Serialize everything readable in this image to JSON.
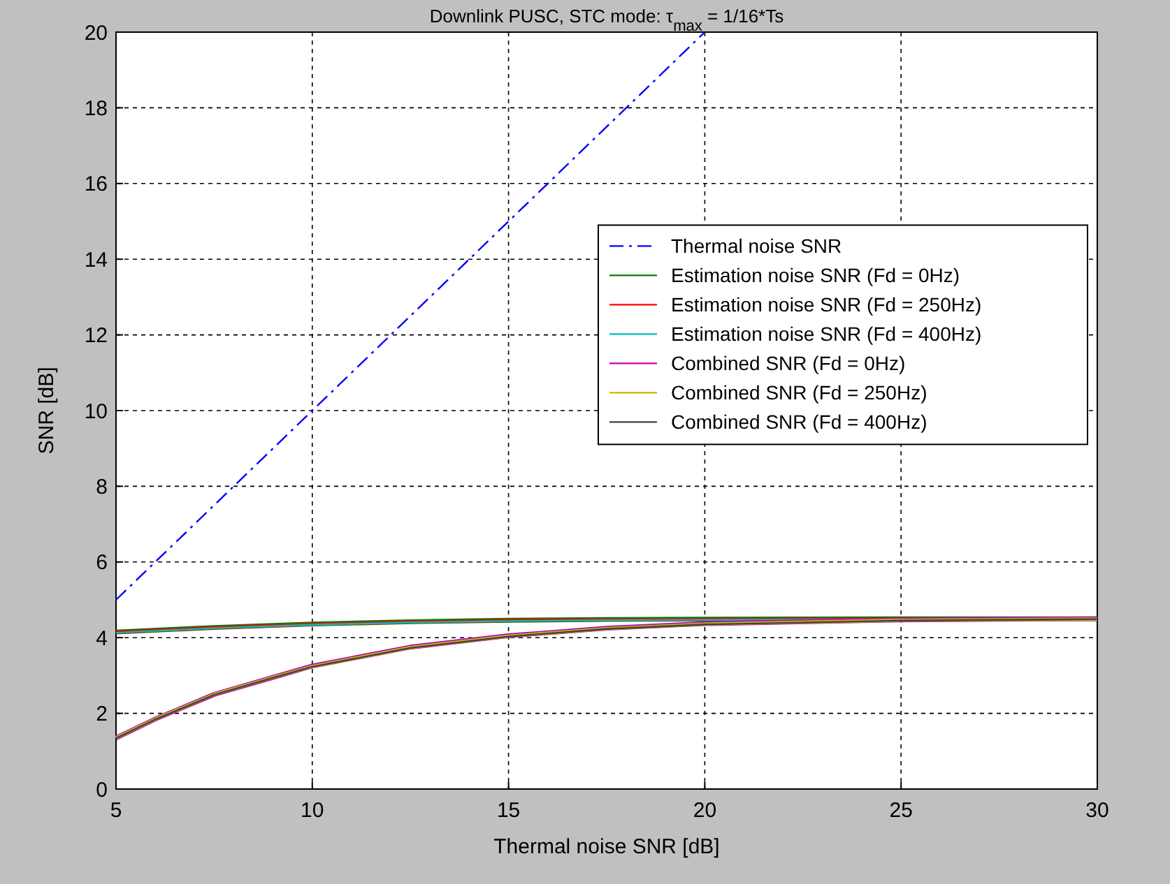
{
  "chart_data": {
    "type": "line",
    "title": "Downlink PUSC, STC mode: τ$_{max}$ = 1/16*Ts",
    "xlabel": "Thermal noise SNR [dB]",
    "ylabel": "SNR [dB]",
    "xlim": [
      5,
      30
    ],
    "xticks": [
      5,
      10,
      15,
      20,
      25,
      30
    ],
    "ylim": [
      0,
      20
    ],
    "yticks": [
      0,
      2,
      4,
      6,
      8,
      10,
      12,
      14,
      16,
      18,
      20
    ],
    "grid": true,
    "legend": "right",
    "series": [
      {
        "name": "Thermal noise SNR",
        "color": "#0000ff",
        "line_style": "dashed",
        "x": [
          5,
          20
        ],
        "values": [
          5,
          20
        ]
      },
      {
        "name": "Estimation noise SNR (Fd = 0Hz)",
        "color": "#008000",
        "x": [
          5,
          7.5,
          10,
          12.5,
          15,
          17.5,
          20,
          25,
          30
        ],
        "values": [
          4.15,
          4.27,
          4.36,
          4.42,
          4.46,
          4.48,
          4.49,
          4.5,
          4.5
        ]
      },
      {
        "name": "Estimation noise SNR (Fd = 250Hz)",
        "color": "#ff0000",
        "x": [
          5,
          7.5,
          10,
          12.5,
          15,
          17.5,
          20,
          25,
          30
        ],
        "values": [
          4.14,
          4.26,
          4.35,
          4.41,
          4.45,
          4.47,
          4.48,
          4.49,
          4.5
        ]
      },
      {
        "name": "Estimation noise SNR (Fd = 400Hz)",
        "color": "#00bfbf",
        "x": [
          5,
          7.5,
          10,
          12.5,
          15,
          17.5,
          20,
          25,
          30
        ],
        "values": [
          4.13,
          4.25,
          4.34,
          4.4,
          4.44,
          4.46,
          4.47,
          4.49,
          4.5
        ]
      },
      {
        "name": "Combined SNR (Fd = 0Hz)",
        "color": "#bf00bf",
        "x": [
          5,
          6,
          7.5,
          9,
          10,
          12.5,
          15,
          17.5,
          20,
          25,
          30
        ],
        "values": [
          1.35,
          1.85,
          2.5,
          2.95,
          3.25,
          3.75,
          4.05,
          4.25,
          4.37,
          4.47,
          4.5
        ]
      },
      {
        "name": "Combined SNR (Fd = 250Hz)",
        "color": "#bfbf00",
        "x": [
          5,
          6,
          7.5,
          9,
          10,
          12.5,
          15,
          17.5,
          20,
          25,
          30
        ],
        "values": [
          1.35,
          1.85,
          2.5,
          2.95,
          3.24,
          3.74,
          4.04,
          4.24,
          4.36,
          4.46,
          4.49
        ]
      },
      {
        "name": "Combined SNR (Fd = 400Hz)",
        "color": "#404040",
        "x": [
          5,
          6,
          7.5,
          9,
          10,
          12.5,
          15,
          17.5,
          20,
          25,
          30
        ],
        "values": [
          1.34,
          1.84,
          2.49,
          2.94,
          3.23,
          3.73,
          4.03,
          4.23,
          4.35,
          4.45,
          4.49
        ]
      }
    ]
  }
}
